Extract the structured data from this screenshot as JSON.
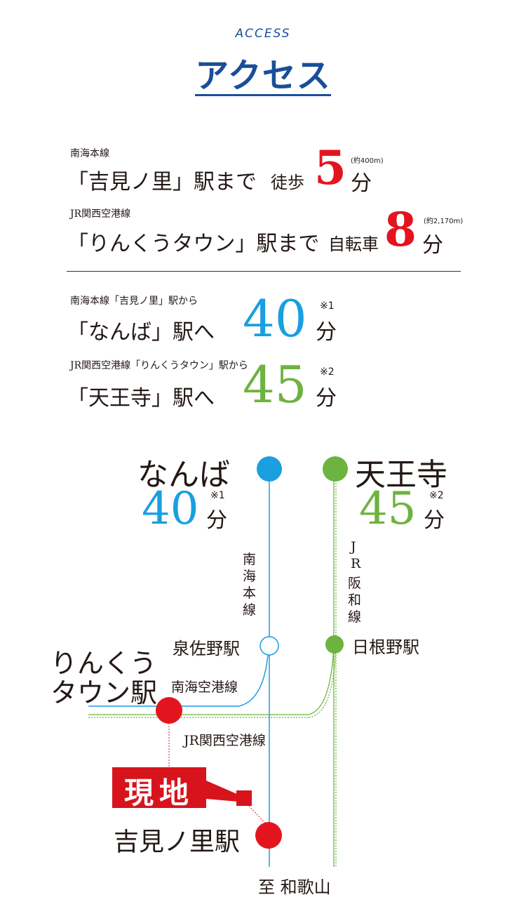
{
  "header": {
    "subtitle": "ACCESS",
    "title": "アクセス"
  },
  "routes_near": [
    {
      "line": "南海本線",
      "station": "「吉見ノ里」駅まで",
      "mode": "徒歩",
      "minutes": "5",
      "unit": "分",
      "distance": "(約400m)"
    },
    {
      "line": "JR関西空港線",
      "station": "「りんくうタウン」駅まで",
      "mode": "自転車",
      "minutes": "8",
      "unit": "分",
      "distance": "(約2,170m)"
    }
  ],
  "routes_far": [
    {
      "from": "南海本線「吉見ノ里」駅から",
      "to": "「なんば」駅へ",
      "minutes": "40",
      "unit": "分",
      "note": "※1"
    },
    {
      "from": "JR関西空港線「りんくうタウン」駅から",
      "to": "「天王寺」駅へ",
      "minutes": "45",
      "unit": "分",
      "note": "※2"
    }
  ],
  "map": {
    "namba": {
      "name": "なんば",
      "minutes": "40",
      "unit": "分",
      "note": "※1"
    },
    "tennoji": {
      "name": "天王寺",
      "minutes": "45",
      "unit": "分",
      "note": "※2"
    },
    "nankai_main_line": [
      "南",
      "海",
      "本",
      "線"
    ],
    "jr_hanwa_line": [
      "J",
      "R",
      "阪",
      "和",
      "線"
    ],
    "izumisano": "泉佐野駅",
    "hineno": "日根野駅",
    "rinku_line1": "りんくう",
    "rinku_line2": "タウン駅",
    "nankai_airport_line": "南海空港線",
    "jr_airport_line": "JR関西空港線",
    "site": "現地",
    "yoshiminosato": "吉見ノ里駅",
    "to_wakayama": "至 和歌山"
  },
  "colors": {
    "brand_blue": "#1a4e9a",
    "red": "#e4141f",
    "nankai_blue": "#1a9fe0",
    "jr_green": "#6db33f"
  }
}
